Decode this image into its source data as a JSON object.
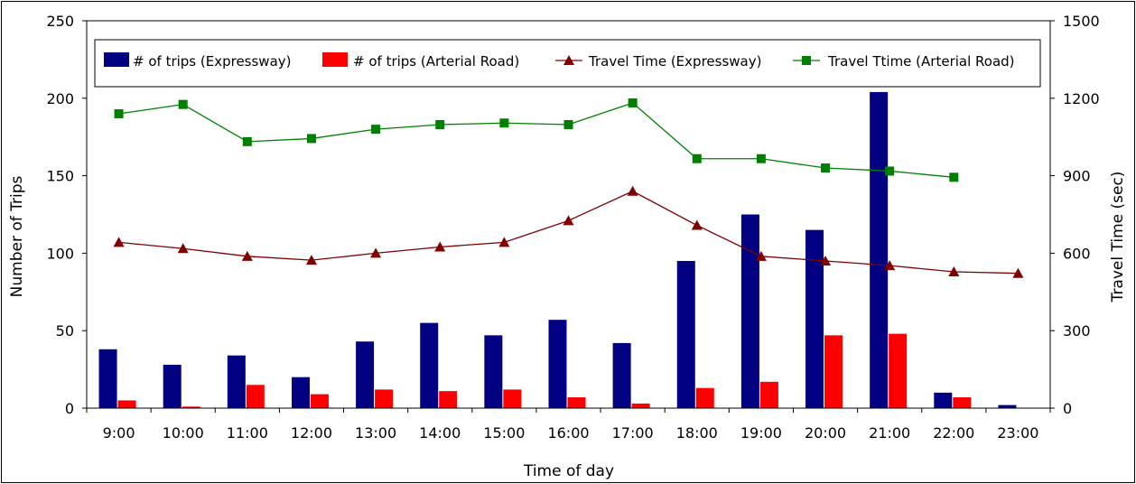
{
  "chart_data": {
    "type": "bar",
    "xlabel": "Time of day",
    "ylabel": "Number of Trips",
    "y2label": "Travel Time (sec)",
    "categories": [
      "9:00",
      "10:00",
      "11:00",
      "12:00",
      "13:00",
      "14:00",
      "15:00",
      "16:00",
      "17:00",
      "18:00",
      "19:00",
      "20:00",
      "21:00",
      "22:00",
      "23:00"
    ],
    "ylim": [
      0,
      250
    ],
    "yticks": [
      0,
      50,
      100,
      150,
      200,
      250
    ],
    "y2lim": [
      0,
      1500
    ],
    "y2ticks": [
      0,
      300,
      600,
      900,
      1200,
      1500
    ],
    "grid": false,
    "legend_position": "top",
    "series": [
      {
        "name": "# of trips (Expressway)",
        "kind": "bar",
        "axis": "left",
        "color": "#000080",
        "values": [
          38,
          28,
          34,
          20,
          43,
          55,
          47,
          57,
          42,
          95,
          125,
          115,
          204,
          10,
          2
        ]
      },
      {
        "name": "# of trips (Arterial Road)",
        "kind": "bar",
        "axis": "left",
        "color": "#ff0000",
        "values": [
          5,
          1,
          15,
          9,
          12,
          11,
          12,
          7,
          3,
          13,
          17,
          47,
          48,
          7,
          null
        ]
      },
      {
        "name": "Travel Time (Expressway)",
        "kind": "line",
        "marker": "triangle",
        "axis": "right",
        "color": "#800000",
        "values": [
          642,
          618,
          588,
          573,
          600,
          624,
          642,
          726,
          840,
          708,
          588,
          570,
          552,
          528,
          522
        ]
      },
      {
        "name": "Travel Ttime (Arterial Road)",
        "kind": "line",
        "marker": "square",
        "axis": "right",
        "color": "#008000",
        "values": [
          1140,
          1176,
          1032,
          1044,
          1080,
          1098,
          1104,
          1098,
          1182,
          966,
          966,
          930,
          918,
          894,
          null
        ]
      }
    ]
  }
}
